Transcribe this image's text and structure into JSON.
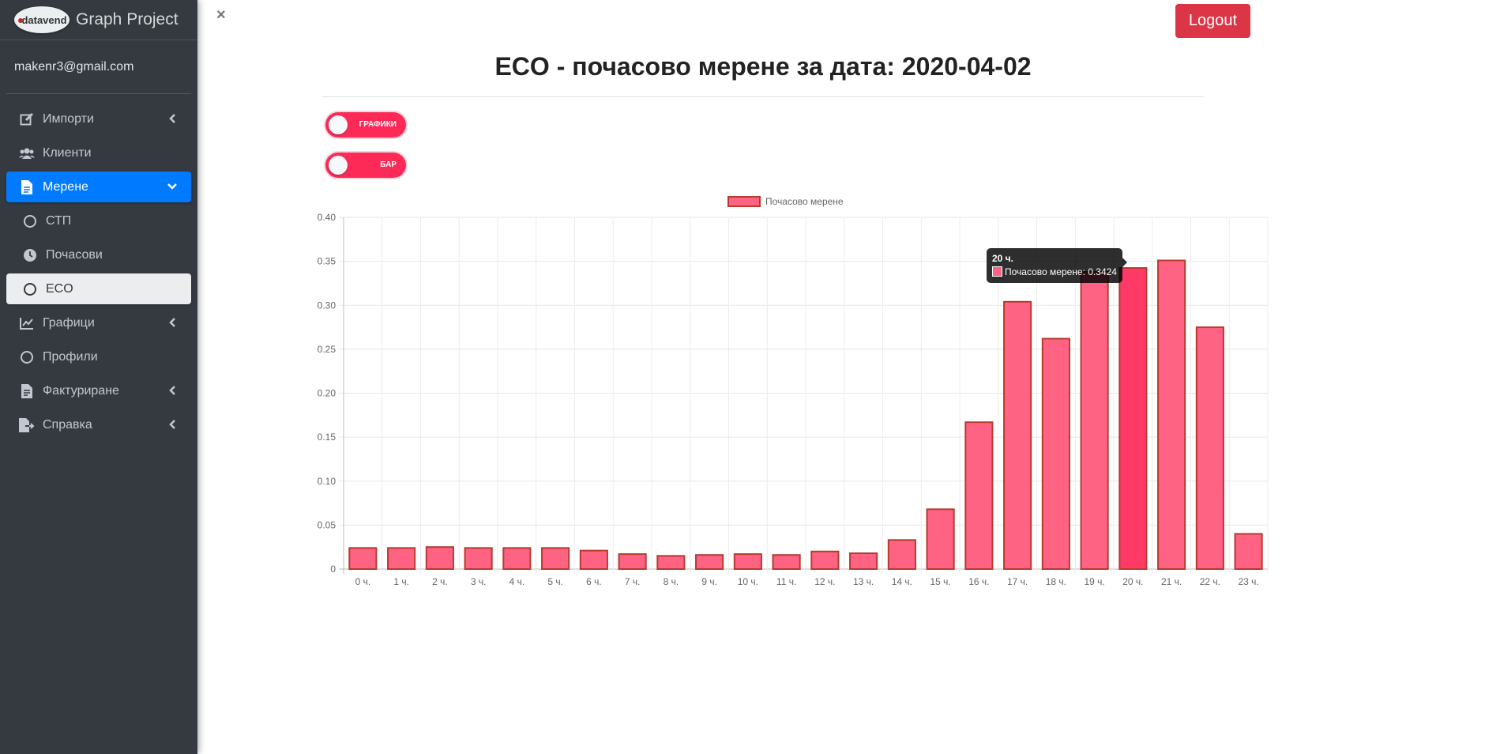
{
  "brand": {
    "logo_text": "datavend",
    "title": "Graph Project"
  },
  "user": {
    "email": "makenr3@gmail.com"
  },
  "sidebar": {
    "items": [
      {
        "label": "Импорти",
        "icon": "edit-icon"
      },
      {
        "label": "Клиенти",
        "icon": "users-icon"
      },
      {
        "label": "Мерене",
        "icon": "file-icon"
      },
      {
        "label": "СТП",
        "icon": "circle-icon"
      },
      {
        "label": "Почасови",
        "icon": "clock-icon"
      },
      {
        "label": "ECO",
        "icon": "circle-icon"
      },
      {
        "label": "Графици",
        "icon": "chart-line-icon"
      },
      {
        "label": "Профили",
        "icon": "circle-icon"
      },
      {
        "label": "Фактуриране",
        "icon": "invoice-icon"
      },
      {
        "label": "Справка",
        "icon": "file-export-icon"
      }
    ]
  },
  "header": {
    "close_symbol": "×",
    "logout_label": "Logout"
  },
  "main": {
    "title": "ECO - почасово мерене за дата: 2020-04-02",
    "toggles": {
      "charts_label": "ГРАФИКИ",
      "bar_label": "БАР"
    }
  },
  "colors": {
    "sidebar_bg": "#343a40",
    "active": "#007bff",
    "danger": "#dc3545",
    "toggle": "#fd2a58",
    "bar_fill": "#ff6384",
    "bar_border": "#b73a2e",
    "bar_hover": "#ff3a66"
  },
  "chart_data": {
    "type": "bar",
    "legend": "Почасово мерене",
    "legend_position": "top",
    "categories": [
      "0 ч.",
      "1 ч.",
      "2 ч.",
      "3 ч.",
      "4 ч.",
      "5 ч.",
      "6 ч.",
      "7 ч.",
      "8 ч.",
      "9 ч.",
      "10 ч.",
      "11 ч.",
      "12 ч.",
      "13 ч.",
      "14 ч.",
      "15 ч.",
      "16 ч.",
      "17 ч.",
      "18 ч.",
      "19 ч.",
      "20 ч.",
      "21 ч.",
      "22 ч.",
      "23 ч."
    ],
    "series": [
      {
        "name": "Почасово мерене",
        "values": [
          0.024,
          0.024,
          0.025,
          0.024,
          0.024,
          0.024,
          0.021,
          0.017,
          0.015,
          0.016,
          0.017,
          0.016,
          0.02,
          0.018,
          0.033,
          0.068,
          0.167,
          0.304,
          0.262,
          0.338,
          0.3424,
          0.351,
          0.275,
          0.04
        ]
      }
    ],
    "yticks": [
      "0",
      "0.05",
      "0.10",
      "0.15",
      "0.20",
      "0.25",
      "0.30",
      "0.35",
      "0.40"
    ],
    "ylim": [
      0,
      0.4
    ],
    "grid": true,
    "tooltip": {
      "title": "20 ч.",
      "text": "Почасово мерене: 0.3424",
      "index": 20
    }
  }
}
